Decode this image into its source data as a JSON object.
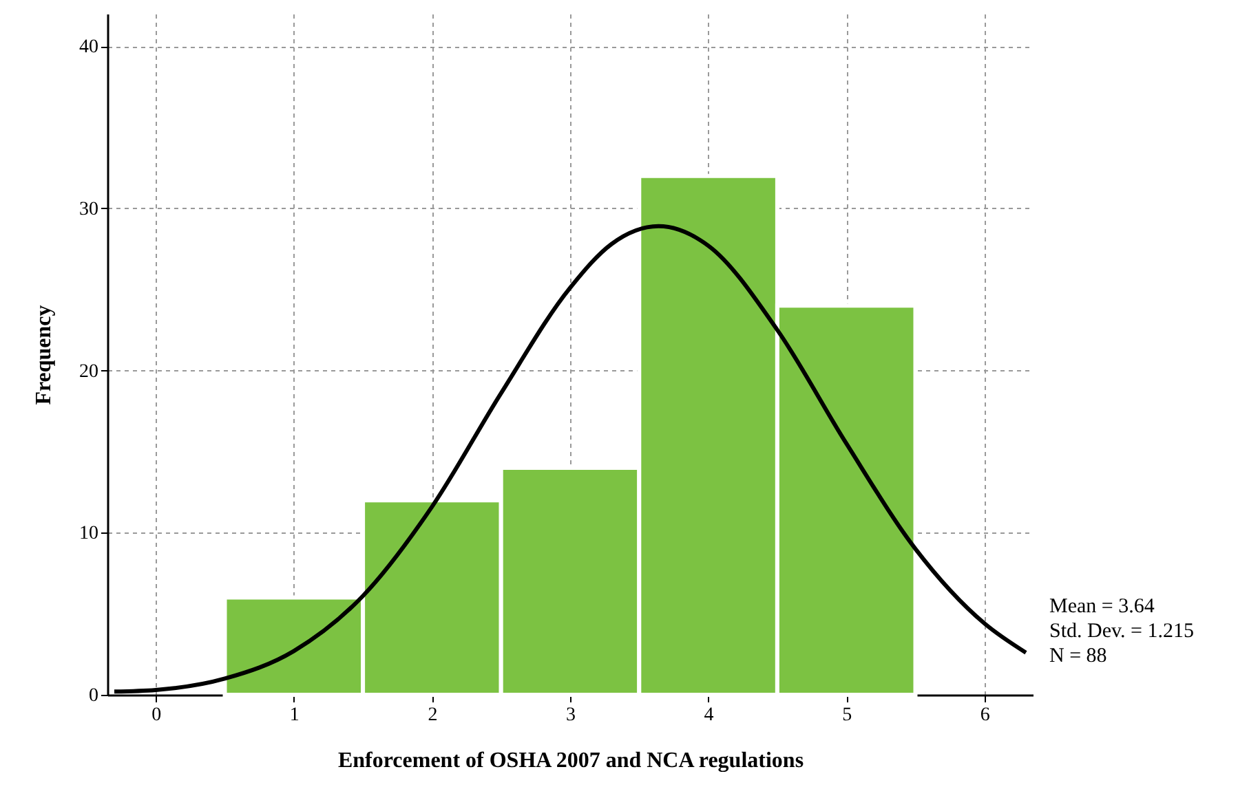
{
  "chart_data": {
    "type": "histogram",
    "xlabel": "Enforcement of OSHA 2007 and NCA regulations",
    "ylabel": "Frequency",
    "bins": [
      0.5,
      1.5,
      2.5,
      3.5,
      4.5,
      5.5
    ],
    "values": [
      6,
      12,
      14,
      32,
      24
    ],
    "color": "#7cc242",
    "series": [
      {
        "type": "line",
        "color": "#000000",
        "x": [
          -0.3,
          0,
          0.5,
          1,
          1.5,
          2,
          2.5,
          3,
          3.3,
          3.64,
          4,
          4.5,
          5,
          5.5,
          6,
          6.3
        ],
        "values": [
          0.2,
          0.3,
          1.0,
          2.7,
          6.1,
          11.6,
          18.6,
          25.1,
          27.8,
          28.9,
          27.7,
          22.5,
          15.5,
          9.0,
          4.4,
          2.6
        ]
      }
    ],
    "xlim": [
      -0.35,
      6.35
    ],
    "ylim": [
      0,
      42
    ],
    "xticks": [
      0,
      1,
      2,
      3,
      4,
      5,
      6
    ],
    "yticks": [
      0,
      10,
      20,
      30,
      40
    ],
    "grid": true,
    "annotations": [
      "Mean = 3.64",
      "Std. Dev. = 1.215",
      "N = 88"
    ]
  }
}
